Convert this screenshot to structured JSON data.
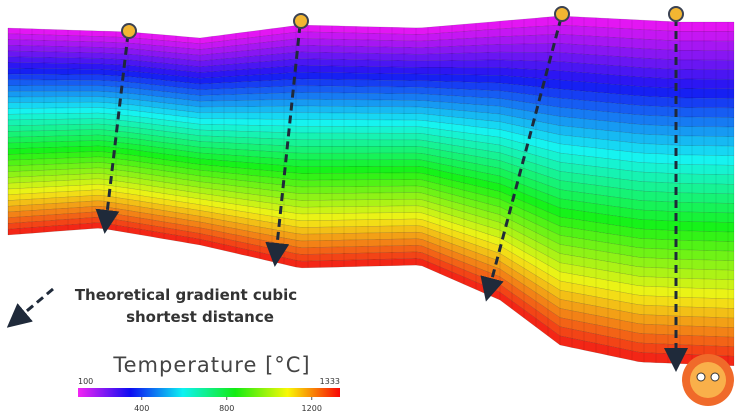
{
  "annotation": {
    "lines": [
      "Theoretical gradient cubic",
      "shortest distance"
    ]
  },
  "legend": {
    "title": "Temperature [°C]",
    "min": 100,
    "max": 1333,
    "ticks": [
      400,
      800,
      1200
    ]
  }
}
